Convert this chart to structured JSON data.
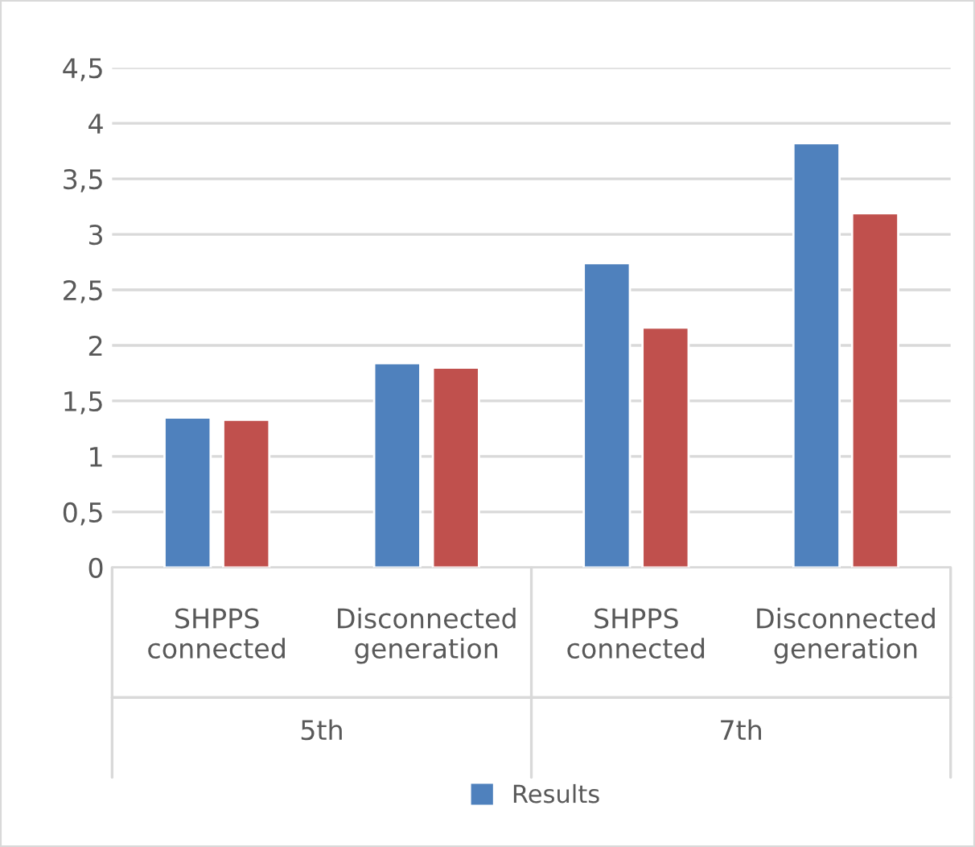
{
  "chart_data": {
    "type": "bar",
    "categories": [
      "SHPPS\nconnected",
      "Disconnected\ngeneration",
      "SHPPS\nconnected",
      "Disconnected\ngeneration"
    ],
    "annotations": [
      "5th",
      "7th"
    ],
    "series": [
      {
        "name": "Results",
        "color": "#4f81bd",
        "values": [
          1.35,
          1.84,
          2.74,
          3.82
        ]
      },
      {
        "color": "#c0504d",
        "values": [
          1.33,
          1.8,
          2.16,
          3.19
        ]
      }
    ],
    "ylim": [
      0,
      4.5
    ],
    "yticks": [
      0,
      {
        "value": 0.5,
        "label": "0,5"
      },
      1,
      {
        "value": 1.5,
        "label": "1,5"
      },
      2,
      {
        "value": 2.5,
        "label": "2,5"
      },
      3,
      {
        "value": 3.5,
        "label": "3,5"
      },
      4,
      {
        "value": 4.5,
        "label": "4,5"
      }
    ],
    "grid": "y",
    "legend": "bottom"
  }
}
